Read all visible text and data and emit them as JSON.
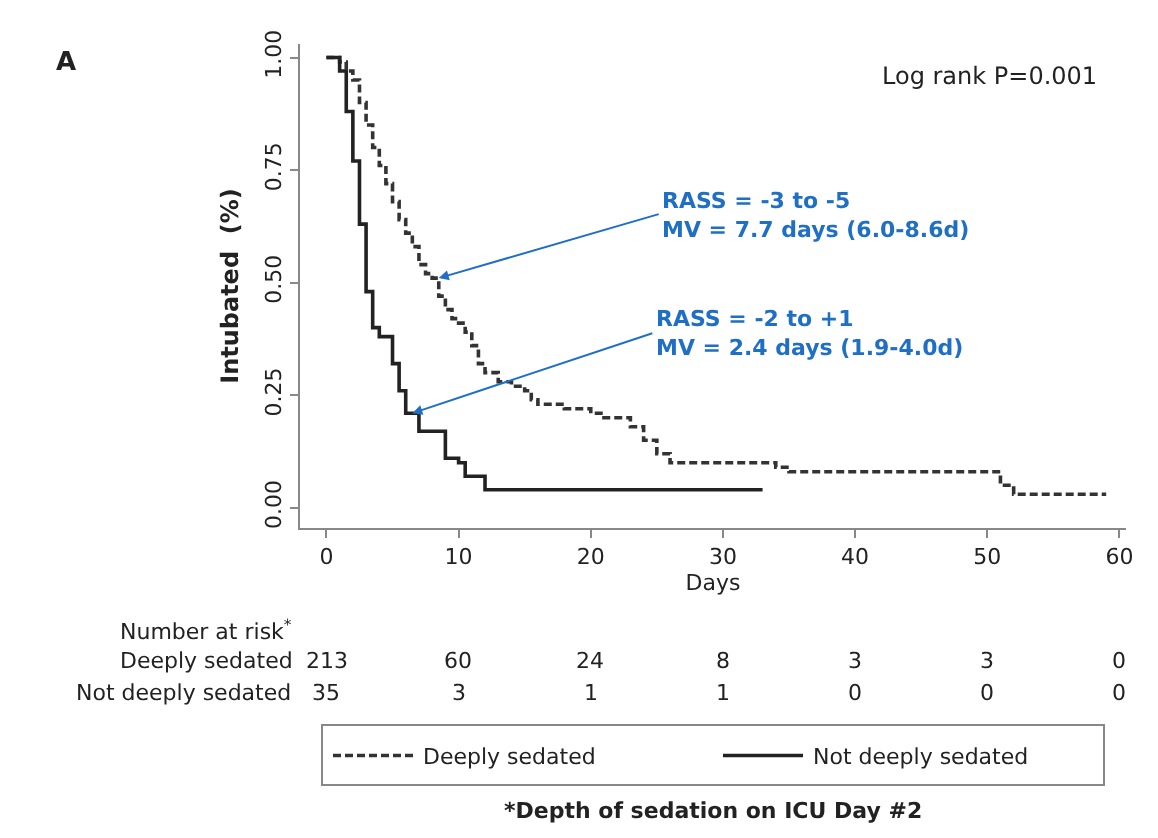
{
  "chart_data": {
    "type": "step",
    "xlabel": "Days",
    "ylabel": "Intubated  (%)",
    "xlim": [
      -2,
      60.5
    ],
    "xticks": [
      0,
      10,
      20,
      30,
      40,
      50,
      60
    ],
    "ylim": [
      -0.045,
      1.03
    ],
    "yticks": [
      {
        "value": 0,
        "label": "0.00"
      },
      {
        "value": 0.25,
        "label": "0.25"
      },
      {
        "value": 0.5,
        "label": "0.50"
      },
      {
        "value": 0.75,
        "label": "0.75"
      },
      {
        "value": 1,
        "label": "1.00"
      }
    ],
    "legend": "bottom",
    "marker": "none",
    "series": [
      {
        "name": "Deeply sedated",
        "color": "#333333",
        "line_style": "dashed",
        "x": [
          0,
          1,
          1.5,
          2,
          2.5,
          3,
          3.5,
          4,
          4.5,
          5,
          5.5,
          6,
          6.5,
          7,
          7.5,
          8,
          8.5,
          9,
          9.5,
          10,
          10.5,
          11,
          11.5,
          12,
          13,
          14,
          15,
          15.5,
          16,
          18,
          20,
          21,
          23,
          24,
          25,
          26,
          33,
          34,
          35,
          50,
          51,
          52,
          59
        ],
        "values": [
          1.0,
          0.99,
          0.97,
          0.95,
          0.9,
          0.85,
          0.8,
          0.76,
          0.72,
          0.68,
          0.64,
          0.61,
          0.58,
          0.54,
          0.52,
          0.51,
          0.47,
          0.44,
          0.42,
          0.41,
          0.39,
          0.36,
          0.32,
          0.3,
          0.28,
          0.27,
          0.26,
          0.24,
          0.23,
          0.22,
          0.21,
          0.2,
          0.18,
          0.15,
          0.12,
          0.1,
          0.1,
          0.09,
          0.08,
          0.08,
          0.05,
          0.03,
          0.03
        ]
      },
      {
        "name": "Not deeply sedated",
        "color": "#222222",
        "line_style": "solid",
        "x": [
          0,
          1,
          1.5,
          2,
          2.5,
          3,
          3.5,
          4,
          5,
          5.5,
          6,
          7,
          8.5,
          9,
          10,
          10.5,
          12,
          33
        ],
        "values": [
          1.0,
          0.97,
          0.88,
          0.77,
          0.63,
          0.48,
          0.4,
          0.38,
          0.32,
          0.26,
          0.21,
          0.17,
          0.17,
          0.11,
          0.1,
          0.07,
          0.04,
          0.04
        ]
      }
    ],
    "annotations": [
      "A",
      "Log rank P=0.001",
      {
        "text": "RASS = -3 to -5\nMV = 7.7 days (6.0-8.6d)",
        "x": 8.5,
        "y": 0.51
      },
      {
        "text": "RASS = -2 to +1\nMV = 2.4 days (1.9-4.0d)",
        "x": 6.5,
        "y": 0.21
      },
      "Number at risk$^{*}$",
      "Deeply sedated 213 60 24 8 3 3 0",
      "Not deeply sedated 35 3 1 1 0 0 0",
      "*Depth of sedation on ICU Day #2"
    ]
  }
}
